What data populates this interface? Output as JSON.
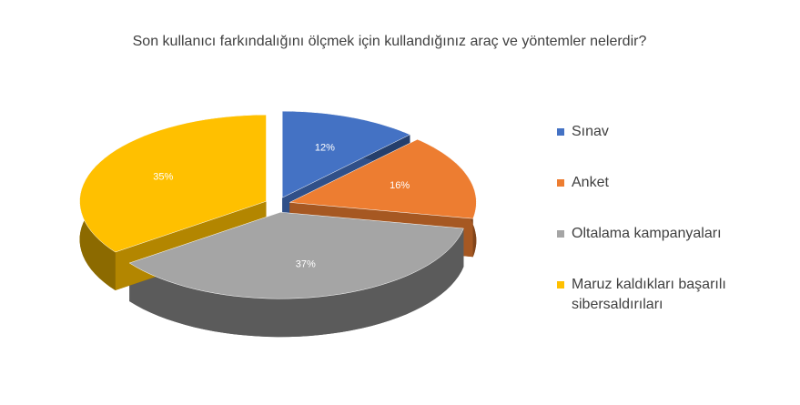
{
  "chart_data": {
    "type": "pie3d",
    "title": "Son kullanıcı farkındalığını ölçmek için kullandığınız araç ve yöntemler nelerdir?",
    "series": [
      {
        "name": "Sınav",
        "color": "#4472c4",
        "values": [
          12
        ],
        "value_labels": [
          "12%"
        ]
      },
      {
        "name": "Anket",
        "color": "#ed7d31",
        "values": [
          16
        ],
        "value_labels": [
          "16%"
        ]
      },
      {
        "name": "Oltalama kampanyaları",
        "color": "#a5a5a5",
        "values": [
          37
        ],
        "value_labels": [
          "37%"
        ]
      },
      {
        "name": "Maruz kaldıkları başarılı sibersaldırıları",
        "color": "#ffc000",
        "values": [
          35
        ],
        "value_labels": [
          "35%"
        ]
      }
    ],
    "legend": "right"
  }
}
